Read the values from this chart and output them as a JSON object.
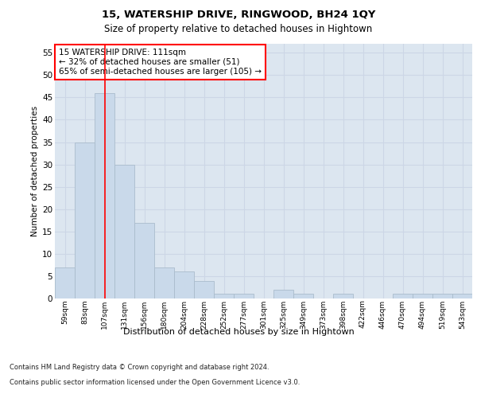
{
  "title1": "15, WATERSHIP DRIVE, RINGWOOD, BH24 1QY",
  "title2": "Size of property relative to detached houses in Hightown",
  "xlabel": "Distribution of detached houses by size in Hightown",
  "ylabel": "Number of detached properties",
  "bar_labels": [
    "59sqm",
    "83sqm",
    "107sqm",
    "131sqm",
    "156sqm",
    "180sqm",
    "204sqm",
    "228sqm",
    "252sqm",
    "277sqm",
    "301sqm",
    "325sqm",
    "349sqm",
    "373sqm",
    "398sqm",
    "422sqm",
    "446sqm",
    "470sqm",
    "494sqm",
    "519sqm",
    "543sqm"
  ],
  "bar_values": [
    7,
    35,
    46,
    30,
    17,
    7,
    6,
    4,
    1,
    1,
    0,
    2,
    1,
    0,
    1,
    0,
    0,
    1,
    1,
    1,
    1
  ],
  "bar_color": "#c9d9ea",
  "bar_edgecolor": "#aabccc",
  "vline_x": 2,
  "vline_color": "red",
  "annotation_text": "15 WATERSHIP DRIVE: 111sqm\n← 32% of detached houses are smaller (51)\n65% of semi-detached houses are larger (105) →",
  "annotation_box_edgecolor": "red",
  "annotation_box_facecolor": "white",
  "ylim": [
    0,
    57
  ],
  "yticks": [
    0,
    5,
    10,
    15,
    20,
    25,
    30,
    35,
    40,
    45,
    50,
    55
  ],
  "footer_line1": "Contains HM Land Registry data © Crown copyright and database right 2024.",
  "footer_line2": "Contains public sector information licensed under the Open Government Licence v3.0.",
  "grid_color": "#ccd6e6",
  "plot_bg_color": "#dce6f0"
}
